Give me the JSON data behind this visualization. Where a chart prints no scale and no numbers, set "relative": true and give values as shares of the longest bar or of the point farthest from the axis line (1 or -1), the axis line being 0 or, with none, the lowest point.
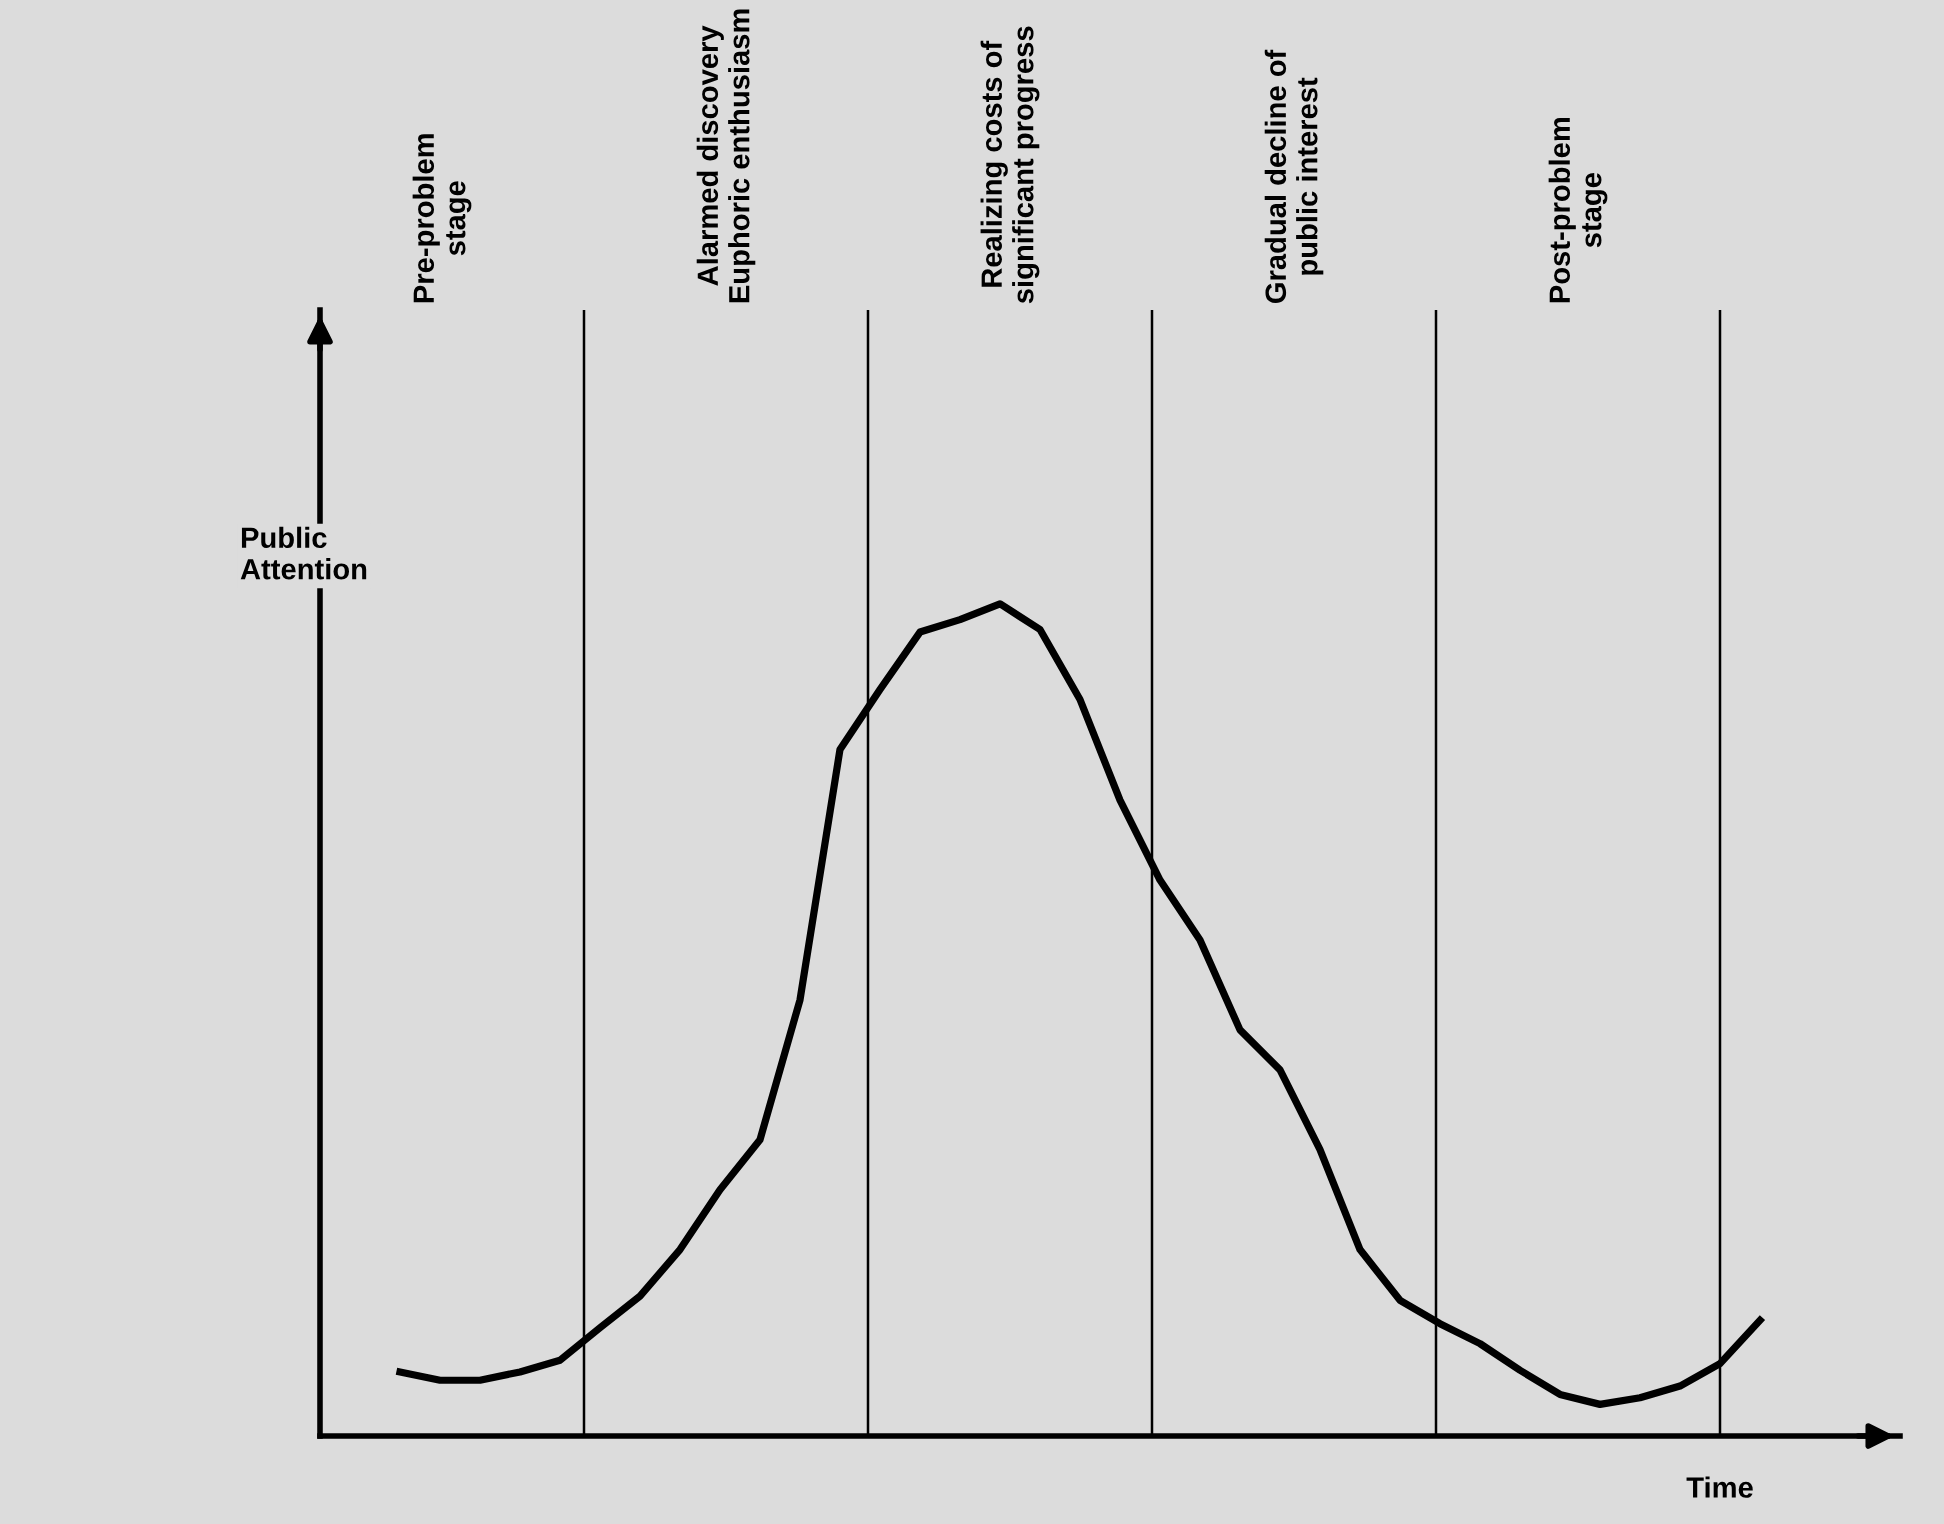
{
  "chart_data": {
    "type": "line",
    "relative": true,
    "xlabel": "Time",
    "ylabel": "Public\nAttention",
    "categories": [
      null,
      null,
      null,
      null,
      null,
      null,
      null,
      null,
      null,
      null,
      null,
      null,
      null,
      null,
      null,
      null,
      null,
      null,
      null,
      null,
      null,
      null,
      null,
      null,
      null,
      null,
      null,
      null,
      null,
      null,
      null,
      null,
      null,
      null,
      null
    ],
    "series": [
      {
        "color": "#000000",
        "values": [
          0.077,
          0.067,
          0.067,
          0.077,
          0.091,
          0.13,
          0.168,
          0.224,
          0.296,
          0.356,
          0.524,
          0.825,
          0.897,
          0.966,
          0.981,
          1,
          0.969,
          0.885,
          0.764,
          0.668,
          0.596,
          0.488,
          0.44,
          0.344,
          0.224,
          0.163,
          0.135,
          0.111,
          0.079,
          0.05,
          0.038,
          0.046,
          0.06,
          0.087,
          0.139
        ]
      }
    ],
    "annotations": [
      "Pre-problem\nstage",
      "Alarmed discovery\nEuphoric enthusiasm",
      "Realizing costs of\nsignificant progress",
      "Gradual decline of\npublic interest",
      "Post-problem\nstage"
    ],
    "grid": false,
    "legend": false,
    "marker": "none",
    "line_style": "solid"
  }
}
